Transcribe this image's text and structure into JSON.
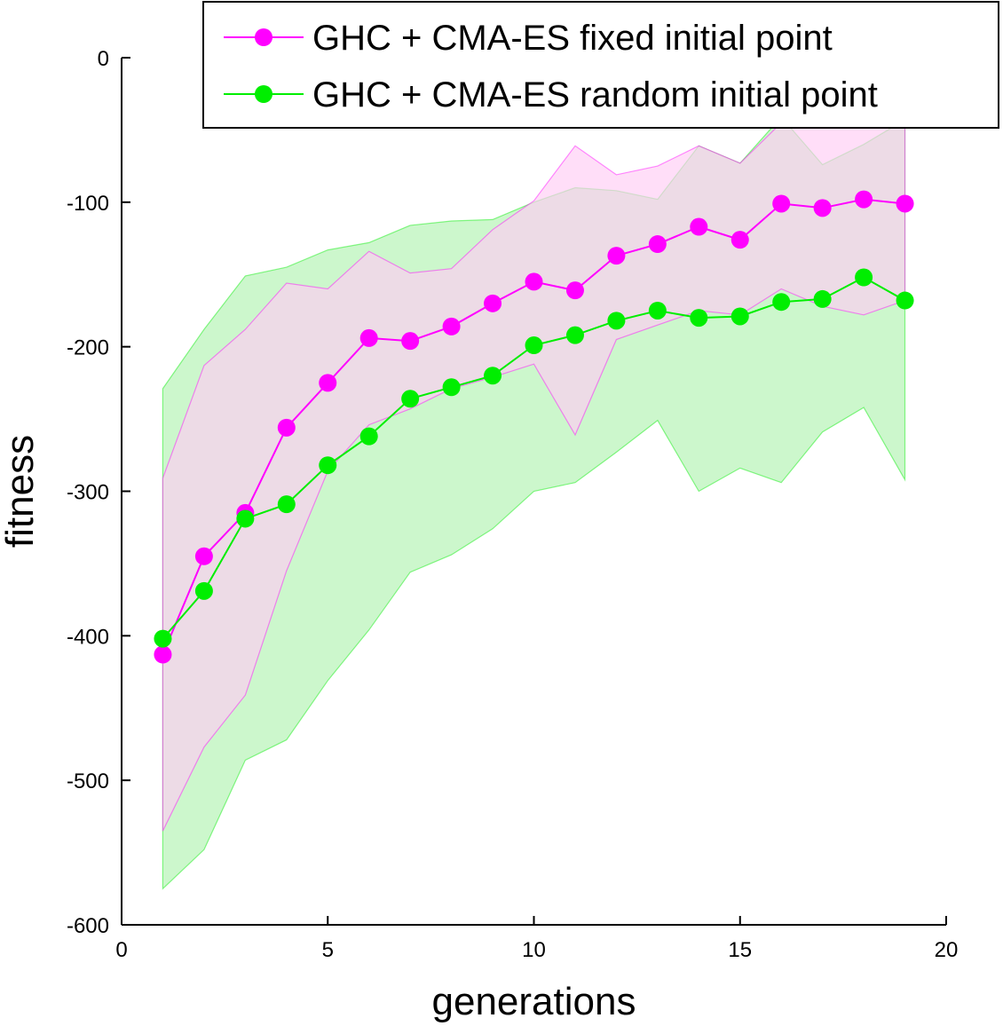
{
  "chart_data": {
    "type": "line",
    "title": "",
    "xlabel": "generations",
    "ylabel": "fitness",
    "xlim": [
      0,
      20
    ],
    "ylim": [
      -600,
      0
    ],
    "xticks": [
      0,
      5,
      10,
      15,
      20
    ],
    "yticks": [
      0,
      -100,
      -200,
      -300,
      -400,
      -500,
      -600
    ],
    "grid": false,
    "legend": "top-right",
    "x": [
      1,
      2,
      3,
      4,
      5,
      6,
      7,
      8,
      9,
      10,
      11,
      12,
      13,
      14,
      15,
      16,
      17,
      18,
      19
    ],
    "series": [
      {
        "name": "GHC + CMA-ES fixed initial point",
        "color": "#ff00ff",
        "band_color": "#ffccf5",
        "values": [
          -413,
          -345,
          -315,
          -256,
          -225,
          -194,
          -196,
          -186,
          -170,
          -155,
          -161,
          -137,
          -129,
          -117,
          -126,
          -101,
          -104,
          -98,
          -101
        ],
        "upper": [
          -291,
          -213,
          -188,
          -156,
          -160,
          -134,
          -149,
          -146,
          -119,
          -99,
          -61,
          -81,
          -75,
          -61,
          -73,
          -45,
          -38,
          -25,
          -20
        ],
        "lower": [
          -535,
          -477,
          -441,
          -355,
          -286,
          -254,
          -243,
          -229,
          -221,
          -212,
          -261,
          -195,
          -185,
          -175,
          -178,
          -160,
          -172,
          -178,
          -168
        ]
      },
      {
        "name": "GHC + CMA-ES random initial point",
        "color": "#00ee00",
        "band_color": "#ccf7cc",
        "values": [
          -402,
          -369,
          -319,
          -309,
          -282,
          -262,
          -236,
          -228,
          -220,
          -199,
          -192,
          -182,
          -175,
          -180,
          -179,
          -169,
          -167,
          -152,
          -168
        ],
        "upper": [
          -229,
          -188,
          -151,
          -145,
          -133,
          -128,
          -116,
          -113,
          -112,
          -100,
          -90,
          -92,
          -98,
          -61,
          -73,
          -41,
          -74,
          -60,
          -43
        ],
        "lower": [
          -575,
          -548,
          -486,
          -472,
          -431,
          -396,
          -356,
          -344,
          -326,
          -300,
          -294,
          -273,
          -251,
          -300,
          -284,
          -294,
          -259,
          -242,
          -292
        ]
      }
    ]
  }
}
